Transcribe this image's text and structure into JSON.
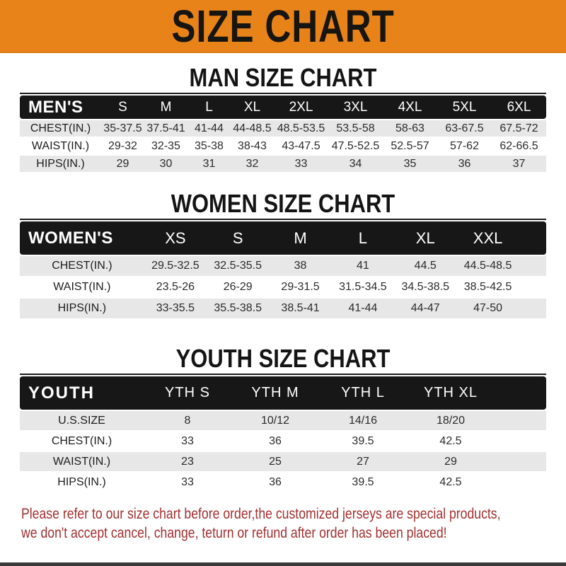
{
  "banner": {
    "title": "SIZE CHART",
    "bg_color": "#E8831A",
    "text_color": "#171512"
  },
  "sections": [
    {
      "heading": "MAN SIZE CHART",
      "corner_label": "MEN'S",
      "columns": [
        "S",
        "M",
        "L",
        "XL",
        "2XL",
        "3XL",
        "4XL",
        "5XL",
        "6XL"
      ],
      "rows": [
        {
          "label": "CHEST(IN.)",
          "values": [
            "35-37.5",
            "37.5-41",
            "41-44",
            "44-48.5",
            "48.5-53.5",
            "53.5-58",
            "58-63",
            "63-67.5",
            "67.5-72"
          ]
        },
        {
          "label": "WAIST(IN.)",
          "values": [
            "29-32",
            "32-35",
            "35-38",
            "38-43",
            "43-47.5",
            "47.5-52.5",
            "52.5-57",
            "57-62",
            "62-66.5"
          ]
        },
        {
          "label": "HIPS(IN.)",
          "values": [
            "29",
            "30",
            "31",
            "32",
            "33",
            "34",
            "35",
            "36",
            "37"
          ]
        }
      ]
    },
    {
      "heading": "WOMEN SIZE CHART",
      "corner_label": "WOMEN'S",
      "columns": [
        "XS",
        "S",
        "M",
        "L",
        "XL",
        "XXL"
      ],
      "rows": [
        {
          "label": "CHEST(IN.)",
          "values": [
            "29.5-32.5",
            "32.5-35.5",
            "38",
            "41",
            "44.5",
            "44.5-48.5"
          ]
        },
        {
          "label": "WAIST(IN.)",
          "values": [
            "23.5-26",
            "26-29",
            "29-31.5",
            "31.5-34.5",
            "34.5-38.5",
            "38.5-42.5"
          ]
        },
        {
          "label": "HIPS(IN.)",
          "values": [
            "33-35.5",
            "35.5-38.5",
            "38.5-41",
            "41-44",
            "44-47",
            "47-50"
          ]
        }
      ]
    },
    {
      "heading": "YOUTH SIZE CHART",
      "corner_label": "YOUTH",
      "columns": [
        "YTH S",
        "YTH M",
        "YTH L",
        "YTH XL"
      ],
      "rows": [
        {
          "label": "U.S.SIZE",
          "values": [
            "8",
            "10/12",
            "14/16",
            "18/20"
          ]
        },
        {
          "label": "CHEST(IN.)",
          "values": [
            "33",
            "36",
            "39.5",
            "42.5"
          ]
        },
        {
          "label": "WAIST(IN.)",
          "values": [
            "23",
            "25",
            "27",
            "29"
          ]
        },
        {
          "label": "HIPS(IN.)",
          "values": [
            "33",
            "36",
            "39.5",
            "42.5"
          ]
        }
      ]
    }
  ],
  "footer": {
    "line1": "Please refer to our size chart before order,the customized jerseys are special products,",
    "line2": "we don't accept cancel, change, teturn or refund after order has been placed!",
    "text_color": "#a23030"
  },
  "colors": {
    "banner_orange": "#E8831A",
    "header_bar_black": "#171717",
    "row_gray": "#E7E7E7",
    "row_white": "#FFFFFF"
  }
}
